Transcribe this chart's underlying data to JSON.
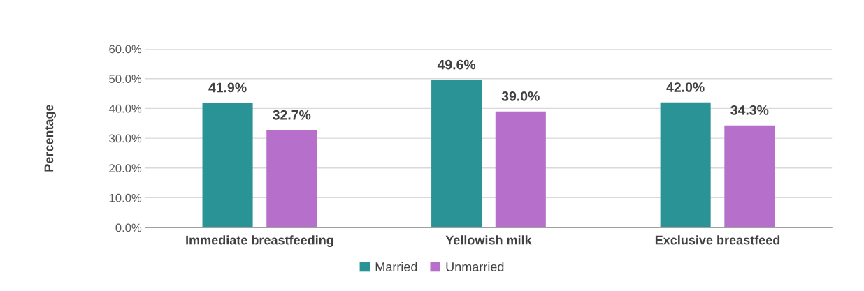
{
  "chart_data": {
    "type": "bar",
    "ylabel": "Percentage",
    "categories": [
      "Immediate breastfeeding",
      "Yellowish milk",
      "Exclusive breastfeed"
    ],
    "series": [
      {
        "name": "Married",
        "color": "#2a9396",
        "values": [
          41.9,
          49.6,
          42.0
        ],
        "value_labels": [
          "41.9%",
          "49.6%",
          "42.0%"
        ]
      },
      {
        "name": "Unmarried",
        "color": "#b66fcb",
        "values": [
          32.7,
          39.0,
          34.3
        ],
        "value_labels": [
          "32.7%",
          "39.0%",
          "34.3%"
        ]
      }
    ],
    "ylim": [
      0,
      60
    ],
    "yticks": [
      {
        "value": 0,
        "label": "0.0%"
      },
      {
        "value": 10,
        "label": "10.0%"
      },
      {
        "value": 20,
        "label": "20.0%"
      },
      {
        "value": 30,
        "label": "30.0%"
      },
      {
        "value": 40,
        "label": "40.0%"
      },
      {
        "value": 50,
        "label": "50.0%"
      },
      {
        "value": 60,
        "label": "60.0%"
      }
    ],
    "grid": "y",
    "legend": "bottom"
  }
}
